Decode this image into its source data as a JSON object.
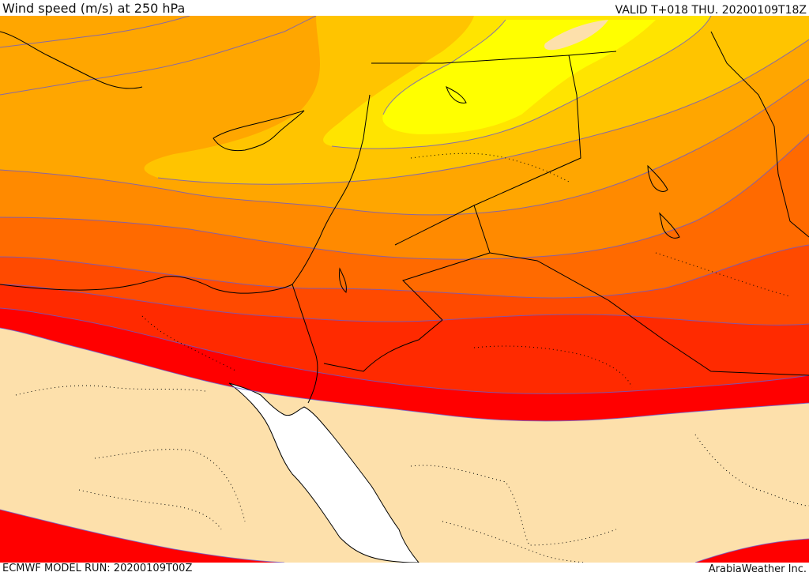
{
  "header": {
    "title": "Wind speed (m/s) at 250 hPa",
    "valid": "VALID T+018 THU. 20200109T18Z"
  },
  "footer": {
    "model_run": "ECMWF MODEL RUN: 20200109T00Z",
    "credit": "ArabiaWeather Inc."
  },
  "map": {
    "field": "wind speed",
    "level": "250 hPa",
    "colors": {
      "calm": "#fde0ab",
      "band_1": "#ffff00",
      "band_2": "#ffe400",
      "band_3": "#ffc400",
      "band_4": "#ffa600",
      "band_5": "#ff8a00",
      "band_6": "#ff6a00",
      "band_7": "#ff4a00",
      "band_8": "#ff2a00",
      "band_9": "#ff0000",
      "sea": "#ffffff",
      "contour": "#6a5acd",
      "border": "#000000"
    }
  }
}
